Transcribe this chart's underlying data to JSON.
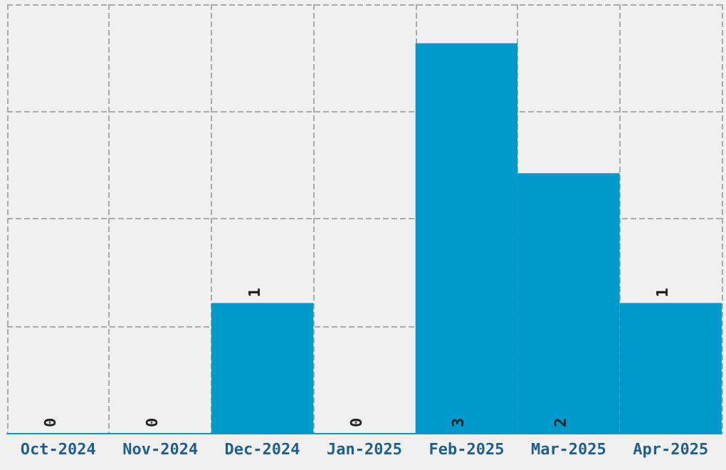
{
  "chart_data": {
    "type": "bar",
    "categories": [
      "Oct-2024",
      "Nov-2024",
      "Dec-2024",
      "Jan-2025",
      "Feb-2025",
      "Mar-2025",
      "Apr-2025"
    ],
    "values": [
      0,
      0,
      1,
      0,
      3,
      2,
      1
    ],
    "color": "#0099cc",
    "ylim": [
      0,
      3.3
    ],
    "yticks": [
      {
        "value": 0,
        "label": null
      },
      {
        "value": 0.825,
        "label": null
      },
      {
        "value": 1.65,
        "label": null
      },
      {
        "value": 2.475,
        "label": null
      },
      {
        "value": 3.3,
        "label": null
      }
    ],
    "grid": true,
    "data_labels": true,
    "tick_labels": "x"
  }
}
